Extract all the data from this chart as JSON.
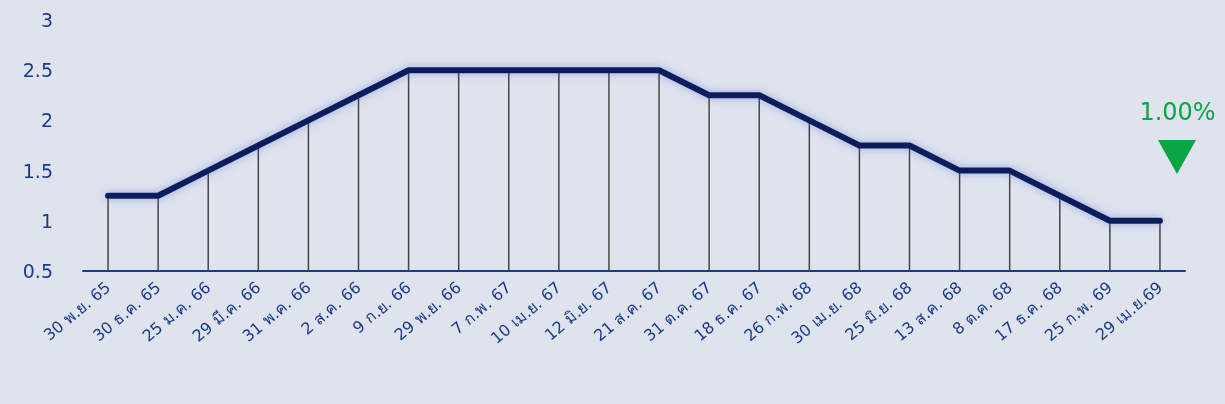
{
  "chart_data": {
    "type": "line",
    "categories": [
      "30 พ.ย. 65",
      "30 ธ.ค. 65",
      "25 ม.ค. 66",
      "29 มี.ค. 66",
      "31 พ.ค. 66",
      "2 ส.ค. 66",
      "9 ก.ย. 66",
      "29 พ.ย. 66",
      "7 ก.พ. 67",
      "10 เม.ย. 67",
      "12 มิ.ย. 67",
      "21 ส.ค. 67",
      "31 ต.ค. 67",
      "18 ธ.ค. 67",
      "26 ก.พ. 68",
      "30 เม.ย. 68",
      "25 มิ.ย. 68",
      "13 ส.ค. 68",
      "8 ต.ค. 68",
      "17 ธ.ค. 68",
      "25 ก.พ. 69",
      "29 เม.ย.69"
    ],
    "series": [
      {
        "type": "bar",
        "color": "#444444",
        "values": [
          1.25,
          1.25,
          1.5,
          1.75,
          2,
          2.25,
          2.5,
          2.5,
          2.5,
          2.5,
          2.5,
          2.5,
          2.25,
          2.25,
          2,
          1.75,
          1.75,
          1.5,
          1.5,
          1.25,
          1,
          1
        ]
      },
      {
        "color": "#0a1f5c",
        "values": [
          1.25,
          1.25,
          1.5,
          1.75,
          2,
          2.25,
          2.5,
          2.5,
          2.5,
          2.5,
          2.5,
          2.5,
          2.25,
          2.25,
          2,
          1.75,
          1.75,
          1.5,
          1.5,
          1.25,
          1,
          1
        ]
      }
    ],
    "ylim": [
      0.5,
      3
    ],
    "yticks": [
      0.5,
      1,
      1.5,
      2,
      2.5,
      3
    ],
    "grid": false,
    "marker": "none",
    "line_style": "solid",
    "annotations": [
      "1.00%"
    ]
  }
}
